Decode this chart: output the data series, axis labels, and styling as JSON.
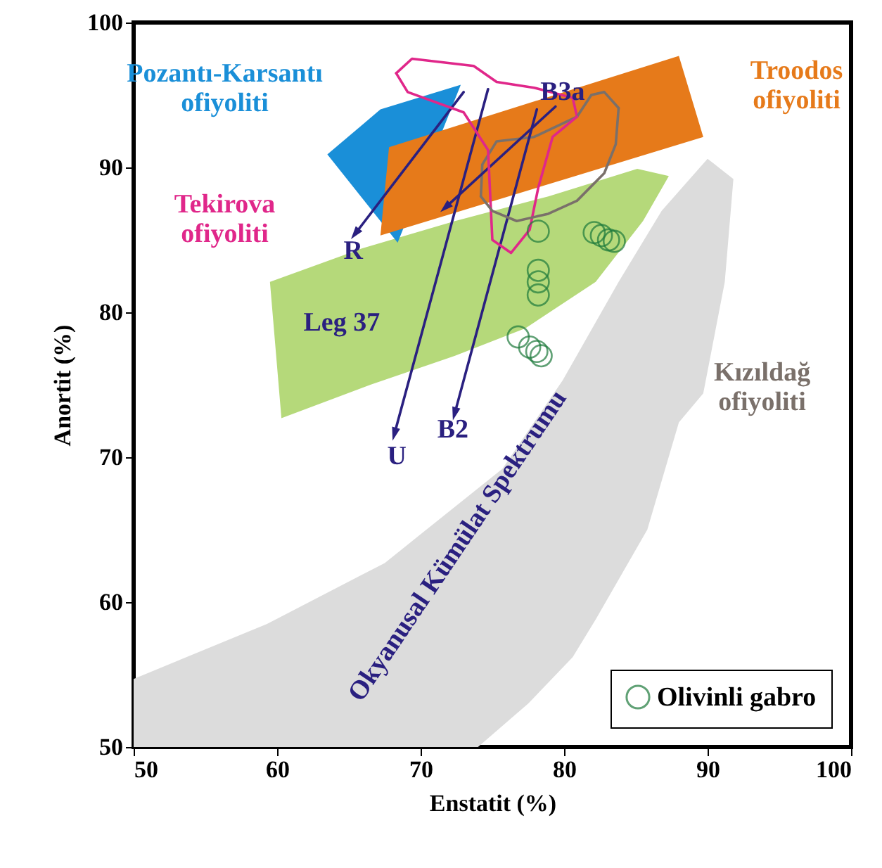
{
  "chart_data": {
    "type": "scatter",
    "xlabel": "Enstatit (%)",
    "ylabel": "Anortit (%)",
    "xlim": [
      50,
      100
    ],
    "xticks": [
      50,
      60,
      70,
      80,
      90,
      100
    ],
    "ylim": [
      50,
      100
    ],
    "yticks": [
      50,
      60,
      70,
      80,
      90,
      100
    ],
    "grid": false,
    "legend": "bottom right",
    "series": [
      {
        "type": "area",
        "name": "Okyanusal Kümülat Spektrumu",
        "color": "#dcdcdc",
        "x": [
          50,
          50,
          59.3,
          67.5,
          75.7,
          79.9,
          83.8,
          86.8,
          90,
          91.8,
          91.2,
          89.7,
          88,
          85.8,
          82.2,
          80.6,
          77.5,
          74
        ],
        "values": [
          50,
          54.7,
          58.5,
          62.7,
          69.2,
          75.3,
          82.1,
          87,
          90.6,
          89.2,
          82.1,
          74.4,
          72.4,
          65,
          58.8,
          56.2,
          53,
          50
        ]
      },
      {
        "type": "area",
        "name": "Leg 37",
        "color": "#b5d97a",
        "x": [
          59.5,
          60.3,
          66.5,
          72.4,
          77.3,
          82.2,
          85.5,
          87.3,
          85.1,
          78.9,
          72.4,
          65.9
        ],
        "values": [
          82.1,
          72.7,
          75,
          77,
          78.9,
          82.1,
          86.3,
          89.4,
          89.9,
          88,
          86.3,
          84.4
        ]
      },
      {
        "type": "area",
        "name": "Pozantı-Karsantı\nofiyoliti",
        "color": "#1a8fd8",
        "x": [
          63.5,
          67.2,
          72.8,
          68.4
        ],
        "values": [
          90.9,
          94,
          95.7,
          84.8
        ]
      },
      {
        "type": "area",
        "name": "Troodos\nofiyoliti",
        "color": "#e67a1a",
        "x": [
          67.8,
          88,
          89.7,
          67.2
        ],
        "values": [
          91.4,
          97.7,
          92.1,
          85.3
        ]
      },
      {
        "type": "line",
        "name": "Tekirova\nofiyoliti",
        "color": "#e0278a",
        "x": [
          68.3,
          69.4,
          73.7,
          75.3,
          77.9,
          80.6,
          80.9
        ],
        "values": [
          96.5,
          97.5,
          97,
          95.9,
          95.5,
          94.8,
          93.5
        ]
      },
      {
        "type": "line",
        "name": "Kızıldağ\nofiyoliti",
        "color": "#7a706a",
        "x": [
          74.2,
          74.3,
          75.3,
          77.9,
          80.9,
          81.9,
          82.8,
          83.8
        ],
        "values": [
          88,
          90.2,
          91.8,
          92.1,
          93.5,
          95,
          95.2,
          94.1
        ]
      },
      {
        "type": "line",
        "name": "R",
        "color": "#2a2080",
        "x": [
          73,
          65.5
        ],
        "values": [
          95.2,
          85.5
        ]
      },
      {
        "type": "line",
        "name": "U",
        "color": "#2a2080",
        "x": [
          74.7,
          68.2
        ],
        "values": [
          95.4,
          71.7
        ]
      },
      {
        "type": "line",
        "name": "B2",
        "color": "#2a2080",
        "x": [
          78.1,
          72.4
        ],
        "values": [
          94,
          73.1
        ]
      },
      {
        "type": "line",
        "name": "B3a",
        "color": "#2a2080",
        "x": [
          79.4,
          71.8
        ],
        "values": [
          94.2,
          87.3
        ]
      },
      {
        "type": "line",
        "color": "#e0278a",
        "x": [
          68.3,
          69.1,
          73,
          74.7,
          75,
          76.3,
          77.6,
          78.2,
          79.2,
          80.9
        ],
        "values": [
          96.5,
          95.2,
          93.8,
          91.2,
          85,
          84.1,
          85.7,
          88.6,
          92.1,
          93.5
        ]
      },
      {
        "type": "line",
        "color": "#7a706a",
        "x": [
          74.2,
          75,
          76.7,
          78.9,
          80.9,
          82.8,
          83.6,
          83.8
        ],
        "values": [
          88,
          87,
          86.3,
          86.8,
          87.7,
          89.6,
          91.6,
          94.1
        ]
      },
      {
        "name": "Olivinli gabro",
        "color": "#1e7a3c",
        "x": [
          78.2,
          82.1,
          82.6,
          83.1,
          83.5,
          78.2,
          78.2,
          78.2,
          76.8,
          77.6,
          78.1,
          78.4
        ],
        "values": [
          85.6,
          85.5,
          85.3,
          85,
          84.9,
          82.9,
          82.1,
          81.2,
          78.3,
          77.6,
          77.3,
          77
        ]
      }
    ]
  }
}
